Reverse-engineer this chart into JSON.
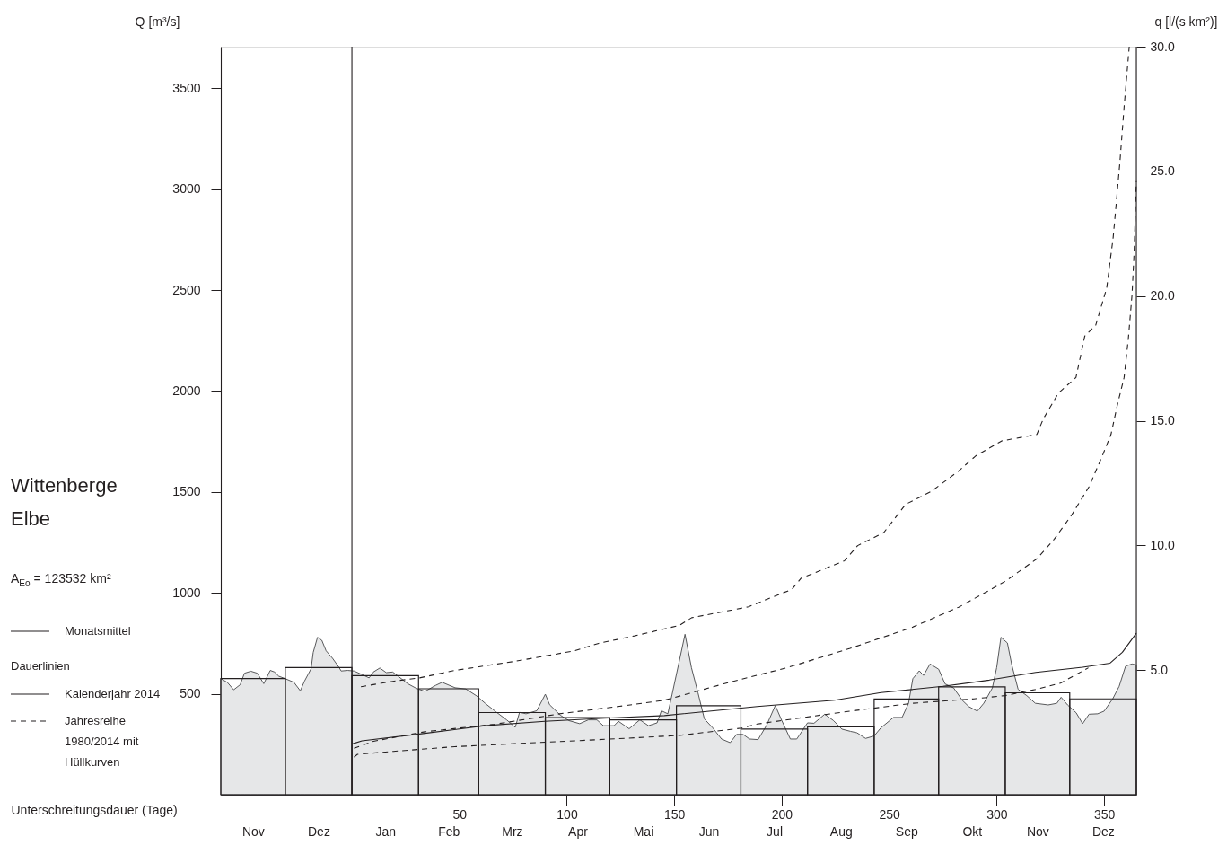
{
  "chart_data": {
    "type": "line",
    "title": "Wittenberge",
    "subtitle": "Elbe",
    "annotations": [
      "A$_{Eo}$ = 123532 km²"
    ],
    "xlabel": "Unterschreitungsdauer (Tage)",
    "ylabel": "Q [m³/s]",
    "y2label": "q [l/(s km²)]",
    "legend_title": "Dauerlinien",
    "xlim": [
      -61,
      365
    ],
    "xticks": [
      50,
      100,
      150,
      200,
      250,
      300,
      350
    ],
    "x2lim": [
      "2013-11-01",
      "2015-01-01"
    ],
    "x2ticks": [
      {
        "value": "2013-11-16",
        "label": "Nov"
      },
      {
        "value": "2013-12-16T12:00",
        "label": "Dez"
      },
      {
        "value": "2014-01-16T12:00",
        "label": "Jan"
      },
      {
        "value": "2014-02-15",
        "label": "Feb"
      },
      {
        "value": "2014-03-16T12:00",
        "label": "Mrz"
      },
      {
        "value": "2014-04-16",
        "label": "Apr"
      },
      {
        "value": "2014-05-16T12:00",
        "label": "Mai"
      },
      {
        "value": "2014-06-16",
        "label": "Jun"
      },
      {
        "value": "2014-07-16T12:00",
        "label": "Jul"
      },
      {
        "value": "2014-08-16T12:00",
        "label": "Aug"
      },
      {
        "value": "2014-09-16",
        "label": "Sep"
      },
      {
        "value": "2014-10-16T12:00",
        "label": "Okt"
      },
      {
        "value": "2014-11-16",
        "label": "Nov"
      },
      {
        "value": "2014-12-16T12:00",
        "label": "Dez"
      }
    ],
    "ylim": [
      0,
      3706
    ],
    "yticks": [
      500,
      1000,
      1500,
      2000,
      2500,
      3000,
      3500
    ],
    "y2lim": [
      0,
      30
    ],
    "y2ticks": [
      {
        "value": 5,
        "label": "5.0"
      },
      {
        "value": 10,
        "label": "10.0"
      },
      {
        "value": 15,
        "label": "15.0"
      },
      {
        "value": 20,
        "label": "20.0"
      },
      {
        "value": 25,
        "label": "25.0"
      },
      {
        "value": 30,
        "label": "30.0"
      }
    ],
    "grid": false,
    "legend": "left",
    "ref_lines": [
      {
        "axis": "x",
        "value": 0,
        "color": "#231f20"
      }
    ],
    "series": [
      {
        "type": "area",
        "axis": "x2",
        "color": "#e6e7e8",
        "x": [
          "2013-11-01",
          "2013-11-04",
          "2013-11-07",
          "2013-11-10",
          "2013-11-12",
          "2013-11-15",
          "2013-11-18",
          "2013-11-21",
          "2013-11-24",
          "2013-11-26",
          "2013-11-28",
          "2013-12-01",
          "2013-12-05",
          "2013-12-08",
          "2013-12-10",
          "2013-12-13",
          "2013-12-14",
          "2013-12-16",
          "2013-12-18",
          "2013-12-20",
          "2013-12-23",
          "2013-12-26",
          "2013-12-27",
          "2013-12-30",
          "2014-01-02",
          "2014-01-06",
          "2014-01-09",
          "2014-01-11",
          "2014-01-14",
          "2014-01-17",
          "2014-01-20",
          "2014-01-24",
          "2014-01-27",
          "2014-01-31",
          "2014-02-04",
          "2014-02-09",
          "2014-02-12",
          "2014-02-18",
          "2014-02-23",
          "2014-02-28",
          "2014-03-04",
          "2014-03-09",
          "2014-03-14",
          "2014-03-18",
          "2014-03-20",
          "2014-03-23",
          "2014-03-28",
          "2014-04-01",
          "2014-04-03",
          "2014-04-08",
          "2014-04-12",
          "2014-04-17",
          "2014-04-21",
          "2014-04-25",
          "2014-04-28",
          "2014-05-03",
          "2014-05-05",
          "2014-05-10",
          "2014-05-15",
          "2014-05-19",
          "2014-05-23",
          "2014-05-25",
          "2014-05-28",
          "2014-05-30",
          "2014-06-02",
          "2014-06-05",
          "2014-06-08",
          "2014-06-11",
          "2014-06-14",
          "2014-06-18",
          "2014-06-22",
          "2014-06-26",
          "2014-06-29",
          "2014-07-02",
          "2014-07-05",
          "2014-07-09",
          "2014-07-13",
          "2014-07-17",
          "2014-07-20",
          "2014-07-24",
          "2014-07-27",
          "2014-08-01",
          "2014-08-04",
          "2014-08-09",
          "2014-08-13",
          "2014-08-17",
          "2014-08-21",
          "2014-08-24",
          "2014-08-28",
          "2014-09-01",
          "2014-09-04",
          "2014-09-10",
          "2014-09-14",
          "2014-09-17",
          "2014-09-19",
          "2014-09-22",
          "2014-09-24",
          "2014-09-27",
          "2014-10-01",
          "2014-10-04",
          "2014-10-08",
          "2014-10-12",
          "2014-10-15",
          "2014-10-19",
          "2014-10-22",
          "2014-10-26",
          "2014-10-28",
          "2014-10-30",
          "2014-11-02",
          "2014-11-04",
          "2014-11-07",
          "2014-11-11",
          "2014-11-15",
          "2014-11-21",
          "2014-11-25",
          "2014-11-27",
          "2014-11-30",
          "2014-12-04",
          "2014-12-07",
          "2014-12-10",
          "2014-12-14",
          "2014-12-17",
          "2014-12-21",
          "2014-12-24",
          "2014-12-27",
          "2014-12-30",
          "2015-01-01"
        ],
        "values": [
          575,
          557,
          520,
          545,
          602,
          612,
          602,
          550,
          616,
          608,
          587,
          575,
          557,
          515,
          564,
          624,
          705,
          780,
          765,
          713,
          676,
          631,
          613,
          616,
          613,
          594,
          579,
          608,
          628,
          605,
          608,
          575,
          550,
          527,
          512,
          542,
          557,
          530,
          524,
          490,
          453,
          411,
          371,
          334,
          408,
          401,
          416,
          498,
          446,
          394,
          367,
          352,
          371,
          371,
          342,
          342,
          364,
          327,
          371,
          342,
          356,
          416,
          401,
          498,
          646,
          795,
          629,
          506,
          376,
          330,
          276,
          258,
          299,
          299,
          276,
          273,
          345,
          442,
          368,
          276,
          276,
          356,
          354,
          399,
          368,
          325,
          314,
          307,
          279,
          291,
          330,
          383,
          383,
          453,
          575,
          614,
          591,
          648,
          622,
          549,
          529,
          468,
          437,
          414,
          453,
          529,
          629,
          780,
          752,
          645,
          522,
          491,
          453,
          445,
          453,
          483,
          445,
          406,
          352,
          399,
          401,
          414,
          475,
          537,
          637,
          648,
          643
        ]
      },
      {
        "type": "bar",
        "axis": "x2",
        "name": "Monatsmittel",
        "color": "#231f20",
        "x": [
          "2013-11-16",
          "2013-12-16T12:00",
          "2014-01-16T12:00",
          "2014-02-15",
          "2014-03-16T12:00",
          "2014-04-16",
          "2014-05-16T12:00",
          "2014-06-16",
          "2014-07-16T12:00",
          "2014-08-16T12:00",
          "2014-09-16",
          "2014-10-16T12:00",
          "2014-11-16",
          "2014-12-16T12:00"
        ],
        "values": [
          576,
          630,
          590,
          525,
          407,
          382,
          371,
          441,
          325,
          336,
          474,
          534,
          505,
          475
        ]
      },
      {
        "name": "Kalenderjahr 2014",
        "color": "#231f20",
        "line_style": "solid",
        "x": [
          0.5,
          4.7,
          34,
          61.8,
          89.7,
          117.5,
          145.4,
          188.6,
          224.6,
          246.2,
          275,
          296.6,
          318.2,
          340,
          352.8,
          358.5,
          365
        ],
        "values": [
          253,
          267,
          304,
          342,
          364,
          379,
          392,
          437,
          468,
          506,
          537,
          568,
          606,
          632,
          652,
          706,
          800
        ]
      },
      {
        "name": "Jahresreihe 1980/2014 mit Hüllkurven",
        "color": "#231f20",
        "line_style": "dashed",
        "x": [
          4.2,
          20.3,
          31.5,
          47.9,
          75.8,
          103.6,
          114.8,
          131.5,
          152.4,
          158.1,
          184.5,
          204.8,
          208.9,
          229.2,
          235.3,
          247.5,
          257.7,
          269.9,
          282.1,
          290.2,
          302.4,
          318.7,
          321.7,
          328.8,
          336.9,
          341,
          346.1,
          351.2,
          354.2,
          357.3,
          359.3,
          361.7
        ],
        "values": [
          535,
          564,
          579,
          616,
          661,
          713,
          750,
          787,
          839,
          877,
          931,
          1018,
          1072,
          1159,
          1234,
          1299,
          1439,
          1505,
          1602,
          1678,
          1753,
          1785,
          1862,
          1991,
          2067,
          2272,
          2326,
          2510,
          2759,
          3127,
          3407,
          3706
        ]
      },
      {
        "color": "#231f20",
        "line_style": "dashed",
        "x": [
          1,
          10,
          34,
          66.3,
          96.6,
          124.5,
          145.4,
          174.2,
          202.3,
          231.8,
          260.6,
          282.3,
          296.6,
          304.4,
          318.7,
          326.8,
          334.9,
          343,
          349.1,
          353.2,
          356.3,
          359.3,
          361.3,
          363,
          364,
          364.6,
          365
        ],
        "values": [
          230,
          265,
          312,
          349,
          401,
          438,
          468,
          553,
          629,
          725,
          829,
          929,
          1013,
          1060,
          1169,
          1266,
          1386,
          1526,
          1677,
          1785,
          1937,
          2067,
          2262,
          2478,
          2694,
          2910,
          3040
        ]
      },
      {
        "color": "#231f20",
        "line_style": "dashed",
        "x": [
          1,
          2.6,
          19.3,
          47.9,
          75.8,
          103.6,
          131.5,
          152.4,
          181.3,
          188.6,
          210.2,
          231.8,
          260.6,
          289.4,
          303.8,
          318.2,
          329.7,
          342.7
        ],
        "values": [
          186,
          200,
          215,
          238,
          253,
          267,
          282,
          294,
          330,
          350,
          383,
          414,
          453,
          475,
          491,
          522,
          553,
          629
        ]
      }
    ]
  }
}
